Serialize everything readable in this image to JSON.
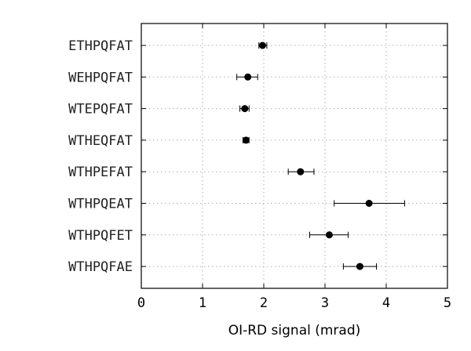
{
  "chart_data": {
    "type": "scatter",
    "title": "",
    "xlabel": "OI-RD signal (mrad)",
    "ylabel": "",
    "xlim": [
      0,
      5
    ],
    "xticks": [
      "0",
      "1",
      "2",
      "3",
      "4",
      "5"
    ],
    "grid": true,
    "categories": [
      "ETHPQFAT",
      "WEHPQFAT",
      "WTEPQFAT",
      "WTHEQFAT",
      "WTHPEFAT",
      "WTHPQEAT",
      "WTHPQFET",
      "WTHPQFAE"
    ],
    "values": [
      1.98,
      1.74,
      1.69,
      1.71,
      2.6,
      3.72,
      3.07,
      3.57
    ],
    "error_low": [
      1.92,
      1.56,
      1.61,
      1.66,
      2.4,
      3.15,
      2.75,
      3.3
    ],
    "error_high": [
      2.05,
      1.9,
      1.76,
      1.76,
      2.82,
      4.3,
      3.38,
      3.84
    ],
    "marker_color": "#000000"
  }
}
